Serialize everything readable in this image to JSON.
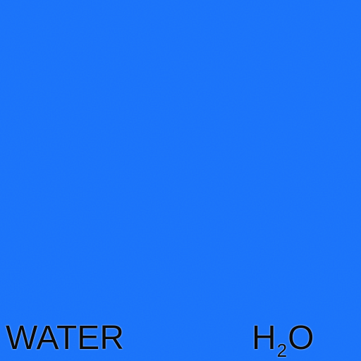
{
  "tile": {
    "name": "WATER",
    "formula_element": "H",
    "formula_subscript": "2",
    "formula_tail": "O",
    "background_color": "#1a70fb",
    "text_color": "#0a0a0a"
  }
}
